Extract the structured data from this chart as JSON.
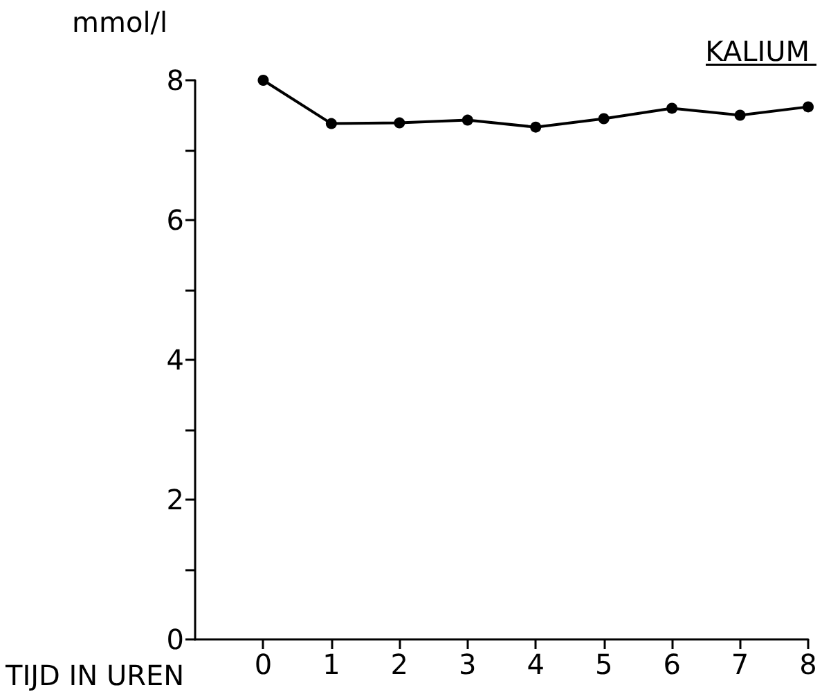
{
  "chart_data": {
    "type": "line",
    "title": "KALIUM",
    "xlabel": "TIJD IN UREN",
    "ylabel": "mmol/l",
    "x": [
      0,
      1,
      2,
      3,
      4,
      5,
      6,
      7,
      8
    ],
    "values": [
      8.0,
      7.38,
      7.39,
      7.43,
      7.33,
      7.45,
      7.6,
      7.5,
      7.62
    ],
    "color": "#000000",
    "marker": "circle",
    "grid": false,
    "xlim": [
      -1,
      8
    ],
    "xticks": [
      0,
      1,
      2,
      3,
      4,
      5,
      6,
      7,
      8
    ],
    "ylim": [
      0,
      8
    ],
    "yticks": [
      0,
      {
        "value": 1,
        "label": null
      },
      2,
      {
        "value": 3,
        "label": null
      },
      4,
      {
        "value": 5,
        "label": null
      },
      6,
      {
        "value": 7,
        "label": null
      },
      8
    ]
  }
}
